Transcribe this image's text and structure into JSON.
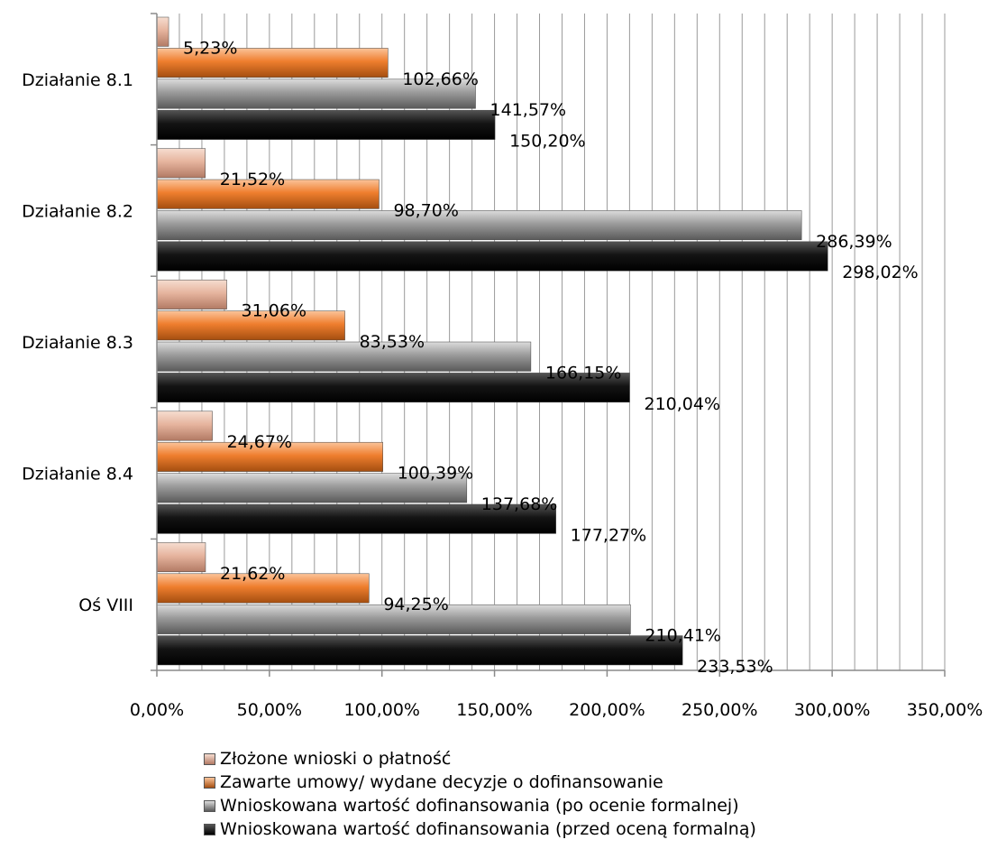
{
  "chart_data": {
    "type": "bar",
    "orientation": "horizontal",
    "categories": [
      "Działanie 8.1",
      "Działanie 8.2",
      "Działanie 8.3",
      "Działanie 8.4",
      "Oś  VIII"
    ],
    "series": [
      {
        "name": "Złożone wnioski o płatność",
        "color": "#e8b8a2",
        "values": [
          5.23,
          21.52,
          31.06,
          24.67,
          21.62
        ],
        "labels": [
          "5,23%",
          "21,52%",
          "31,06%",
          "24,67%",
          "21,62%"
        ]
      },
      {
        "name": "Zawarte umowy/ wydane decyzje o dofinansowanie",
        "color": "#f07e30",
        "values": [
          102.66,
          98.7,
          83.53,
          100.39,
          94.25
        ],
        "labels": [
          "102,66%",
          "98,70%",
          "83,53%",
          "100,39%",
          "94,25%"
        ]
      },
      {
        "name": "Wnioskowana wartość dofinansowania (po ocenie formalnej)",
        "color": "#9a9a9a",
        "values": [
          141.57,
          286.39,
          166.15,
          137.68,
          210.41
        ],
        "labels": [
          "141,57%",
          "286,39%",
          "166,15%",
          "137,68%",
          "210,41%"
        ]
      },
      {
        "name": "Wnioskowana wartość dofinansowania (przed oceną formalną)",
        "color": "#111111",
        "values": [
          150.2,
          298.02,
          210.04,
          177.27,
          233.53
        ],
        "labels": [
          "150,20%",
          "298,02%",
          "210,04%",
          "177,27%",
          "233,53%"
        ]
      }
    ],
    "xlim": [
      0,
      350
    ],
    "xticks": [
      0,
      50,
      100,
      150,
      200,
      250,
      300,
      350
    ],
    "xtick_labels": [
      "0,00%",
      "50,00%",
      "100,00%",
      "150,00%",
      "200,00%",
      "250,00%",
      "300,00%",
      "350,00%"
    ],
    "minor_grid_step": 10,
    "grid": true,
    "legend_position": "bottom",
    "title": "",
    "xlabel": "",
    "ylabel": ""
  }
}
